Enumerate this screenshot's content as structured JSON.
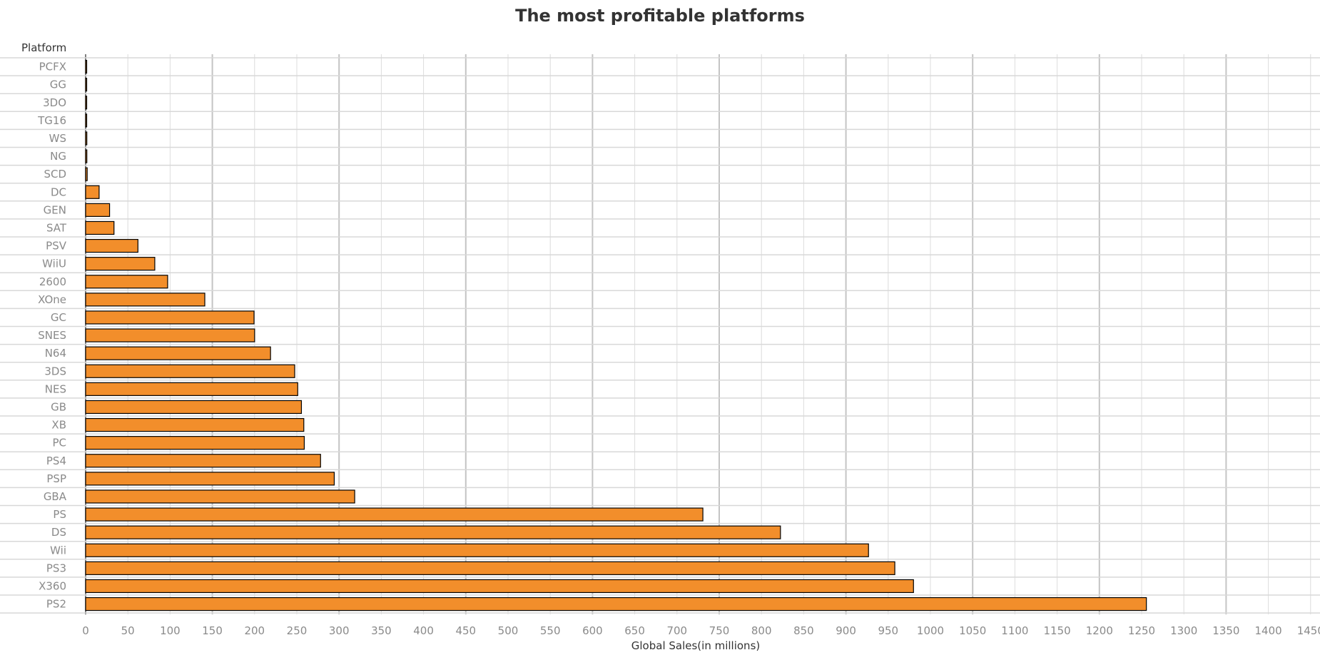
{
  "chart_data": {
    "type": "bar",
    "orientation": "horizontal",
    "title": "The most profitable platforms",
    "y_header": "Platform",
    "xlabel": "Global Sales(in millions)",
    "xlim": [
      0,
      1450
    ],
    "x_ticks": [
      0,
      50,
      100,
      150,
      200,
      250,
      300,
      350,
      400,
      450,
      500,
      550,
      600,
      650,
      700,
      750,
      800,
      850,
      900,
      950,
      1000,
      1050,
      1100,
      1150,
      1200,
      1250,
      1300,
      1350,
      1400,
      1450
    ],
    "grid": true,
    "bar_color": "#f28e2b",
    "bar_stroke": "#000000",
    "categories": [
      "PCFX",
      "GG",
      "3DO",
      "TG16",
      "WS",
      "NG",
      "SCD",
      "DC",
      "GEN",
      "SAT",
      "PSV",
      "WiiU",
      "2600",
      "XOne",
      "GC",
      "SNES",
      "N64",
      "3DS",
      "NES",
      "GB",
      "XB",
      "PC",
      "PS4",
      "PSP",
      "GBA",
      "PS",
      "DS",
      "Wii",
      "PS3",
      "X360",
      "PS2"
    ],
    "values": [
      0.03,
      0.04,
      0.1,
      0.16,
      1.42,
      1.44,
      1.87,
      15.97,
      28.36,
      33.59,
      61.93,
      81.86,
      97.08,
      141.06,
      199.36,
      200.05,
      218.88,
      247.46,
      251.07,
      255.45,
      258.26,
      258.82,
      278.1,
      294.3,
      318.5,
      730.66,
      822.49,
      926.71,
      957.84,
      979.96,
      1255.64
    ]
  }
}
